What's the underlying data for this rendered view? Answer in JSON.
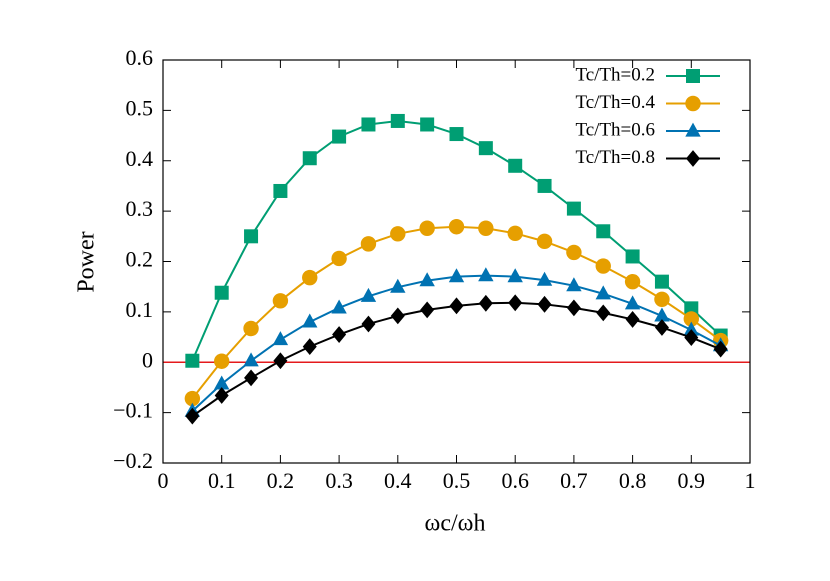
{
  "chart_data": {
    "type": "line",
    "x_label": "ωc/ωh",
    "y_label": "Power",
    "x": [
      0.05,
      0.1,
      0.15,
      0.2,
      0.25,
      0.3,
      0.35,
      0.4,
      0.45,
      0.5,
      0.55,
      0.6,
      0.65,
      0.7,
      0.75,
      0.8,
      0.85,
      0.9,
      0.95
    ],
    "series": [
      {
        "name": "Tc/Th=0.2",
        "color": "#009e73",
        "marker": "square",
        "values": [
          0.003,
          0.138,
          0.25,
          0.34,
          0.405,
          0.448,
          0.472,
          0.479,
          0.472,
          0.453,
          0.425,
          0.39,
          0.35,
          0.305,
          0.26,
          0.21,
          0.16,
          0.107,
          0.053
        ]
      },
      {
        "name": "Tc/Th=0.4",
        "color": "#e69f00",
        "marker": "circle",
        "values": [
          -0.072,
          0.002,
          0.067,
          0.122,
          0.168,
          0.206,
          0.235,
          0.255,
          0.266,
          0.269,
          0.266,
          0.256,
          0.24,
          0.218,
          0.191,
          0.16,
          0.125,
          0.086,
          0.043
        ]
      },
      {
        "name": "Tc/Th=0.6",
        "color": "#0072b2",
        "marker": "triangle",
        "values": [
          -0.097,
          -0.043,
          0.003,
          0.045,
          0.08,
          0.108,
          0.131,
          0.149,
          0.162,
          0.17,
          0.172,
          0.17,
          0.163,
          0.152,
          0.136,
          0.116,
          0.092,
          0.064,
          0.033
        ]
      },
      {
        "name": "Tc/Th=0.8",
        "color": "#000000",
        "marker": "diamond",
        "values": [
          -0.107,
          -0.066,
          -0.031,
          0.003,
          0.031,
          0.055,
          0.076,
          0.092,
          0.104,
          0.112,
          0.117,
          0.118,
          0.115,
          0.108,
          0.098,
          0.085,
          0.069,
          0.049,
          0.026
        ]
      }
    ],
    "reference_line": {
      "value": 0,
      "color": "#e41a1c"
    },
    "xlim": [
      0,
      1
    ],
    "xticks": [
      0,
      0.1,
      0.2,
      0.3,
      0.4,
      0.5,
      0.6,
      0.7,
      0.8,
      0.9,
      1
    ],
    "ylim": [
      -0.2,
      0.6
    ],
    "yticks": [
      {
        "value": -0.2,
        "label": "−0.2"
      },
      {
        "value": -0.1,
        "label": "−0.1"
      },
      0,
      0.1,
      0.2,
      0.3,
      0.4,
      0.5,
      0.6
    ],
    "legend": "top-right"
  }
}
